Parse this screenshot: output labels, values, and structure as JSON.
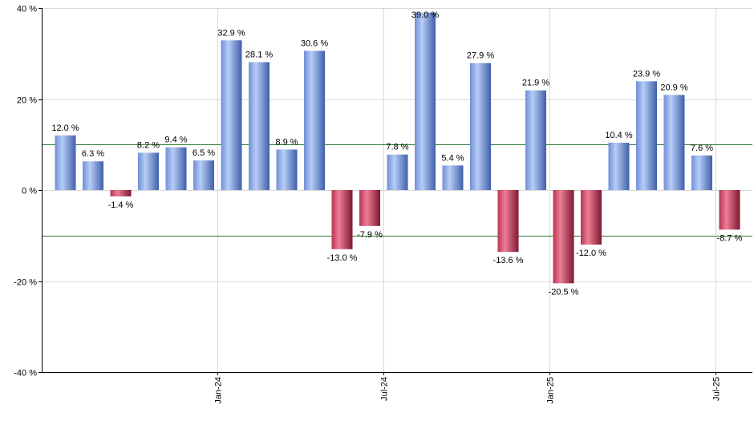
{
  "chart_data": {
    "type": "bar",
    "values": [
      12.0,
      6.3,
      -1.4,
      8.2,
      9.4,
      6.5,
      32.9,
      28.1,
      8.9,
      30.6,
      -13.0,
      -7.9,
      7.8,
      39.0,
      5.4,
      27.9,
      -13.6,
      21.9,
      -20.5,
      -12.0,
      10.4,
      23.9,
      20.9,
      7.6,
      -8.7
    ],
    "data_labels": [
      "12.0 %",
      "6.3 %",
      "-1.4 %",
      "8.2 %",
      "9.4 %",
      "6.5 %",
      "32.9 %",
      "28.1 %",
      "8.9 %",
      "30.6 %",
      "-13.0 %",
      "-7.9 %",
      "7.8 %",
      "39.0 %",
      "5.4 %",
      "27.9 %",
      "-13.6 %",
      "21.9 %",
      "-20.5 %",
      "-12.0 %",
      "10.4 %",
      "23.9 %",
      "20.9 %",
      "7.6 %",
      "-8.7 %"
    ],
    "ylim": [
      -40,
      40
    ],
    "y_ticks": [
      40,
      20,
      0,
      -20,
      -40
    ],
    "y_tick_labels": [
      "40 %",
      "20 %",
      "0 %",
      "-20 %",
      "-40 %"
    ],
    "x_tick_labels": [
      {
        "label": "Jan-24",
        "after_bar": 5
      },
      {
        "label": "Jul-24",
        "after_bar": 11
      },
      {
        "label": "Jan-25",
        "after_bar": 17
      },
      {
        "label": "Jul-25",
        "after_bar": 23
      }
    ],
    "reference_lines": [
      10,
      -10
    ],
    "grid": true,
    "legend": "none",
    "colors": {
      "positive_light": "#a9c3f5",
      "positive_dark": "#4e6fb8",
      "negative_light": "#e86a85",
      "negative_dark": "#8f1f39",
      "reference_line": "#2e7d32",
      "grid": "#d9d9d9",
      "axis": "#000000"
    },
    "title": "",
    "xlabel": "",
    "ylabel": ""
  }
}
